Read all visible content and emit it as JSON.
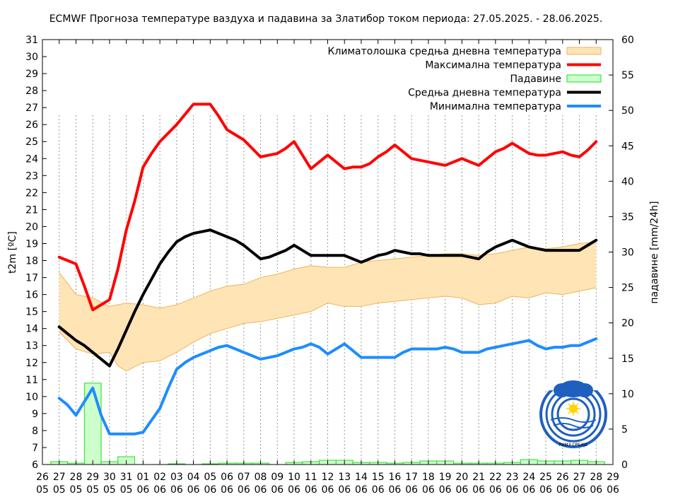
{
  "chart_data": {
    "type": "line",
    "title": "ECMWF Прогноза температуре ваздуха и падавина за Златибор током периода: 27.05.2025. - 28.06.2025.",
    "ylabel": "t2m [ºC]",
    "y2label": "падавине [mm/24h]",
    "ylim": [
      6,
      31
    ],
    "y2lim": [
      0,
      60
    ],
    "yticks": [
      6,
      7,
      8,
      9,
      10,
      11,
      12,
      13,
      14,
      15,
      16,
      17,
      18,
      19,
      20,
      21,
      22,
      23,
      24,
      25,
      26,
      27,
      28,
      29,
      30,
      31
    ],
    "y2ticks": [
      0,
      5,
      10,
      15,
      20,
      25,
      30,
      35,
      40,
      45,
      50,
      55,
      60
    ],
    "xticks_top": [
      "26",
      "27",
      "28",
      "29",
      "30",
      "31",
      "01",
      "02",
      "03",
      "04",
      "05",
      "06",
      "07",
      "08",
      "09",
      "10",
      "11",
      "12",
      "13",
      "14",
      "15",
      "16",
      "17",
      "18",
      "19",
      "20",
      "21",
      "22",
      "23",
      "24",
      "25",
      "26",
      "27",
      "28",
      "29"
    ],
    "xticks_bottom": [
      "05",
      "05",
      "05",
      "05",
      "05",
      "05",
      "06",
      "06",
      "06",
      "06",
      "06",
      "06",
      "06",
      "06",
      "06",
      "06",
      "06",
      "06",
      "06",
      "06",
      "06",
      "06",
      "06",
      "06",
      "06",
      "06",
      "06",
      "06",
      "06",
      "06",
      "06",
      "06",
      "06",
      "06",
      "06"
    ],
    "legend": {
      "placement": "top-right",
      "entries": [
        {
          "label": "Климатолошка средња дневна температура",
          "kind": "band",
          "color": "#ffe4b5"
        },
        {
          "label": "Максимална температура",
          "kind": "line",
          "color": "#ff0000"
        },
        {
          "label": "Падавине",
          "kind": "bar",
          "color": "#ccffcc"
        },
        {
          "label": "Средња дневна температура",
          "kind": "line",
          "color": "#000000"
        },
        {
          "label": "Минимална температура",
          "kind": "line",
          "color": "#1e8cff"
        }
      ]
    },
    "x": [
      1,
      1.5,
      2,
      2.5,
      3,
      3.5,
      4,
      4.5,
      5,
      5.5,
      6,
      6.5,
      7,
      7.5,
      8,
      8.5,
      9,
      9.5,
      10,
      10.5,
      11,
      11.5,
      12,
      12.5,
      13,
      13.5,
      14,
      14.5,
      15,
      15.5,
      16,
      16.5,
      17,
      17.5,
      18,
      18.5,
      19,
      19.5,
      20,
      20.5,
      21,
      21.5,
      22,
      22.5,
      23,
      23.5,
      24,
      24.5,
      25,
      25.5,
      26,
      26.5,
      27,
      27.5,
      28,
      28.5,
      29,
      29.5,
      30,
      30.5,
      31,
      31.5,
      32,
      32.5,
      33
    ],
    "series": [
      {
        "name": "Максимална температура",
        "color": "#ff0000",
        "values": [
          18.2,
          18.0,
          17.8,
          16.5,
          15.1,
          15.4,
          15.7,
          17.5,
          19.8,
          21.5,
          23.5,
          24.3,
          25.0,
          25.5,
          26.0,
          26.6,
          27.2,
          27.2,
          27.2,
          26.5,
          25.7,
          25.4,
          25.1,
          24.6,
          24.1,
          24.2,
          24.3,
          24.6,
          25.0,
          24.2,
          23.4,
          23.8,
          24.2,
          23.8,
          23.4,
          23.5,
          23.5,
          23.7,
          24.1,
          24.4,
          24.8,
          24.4,
          24.0,
          23.9,
          23.8,
          23.7,
          23.6,
          23.8,
          24.0,
          23.8,
          23.6,
          24.0,
          24.4,
          24.6,
          24.9,
          24.6,
          24.3,
          24.2,
          24.2,
          24.3,
          24.4,
          24.2,
          24.1,
          24.5,
          25.0
        ]
      },
      {
        "name": "Средња дневна температура",
        "color": "#000000",
        "values": [
          14.1,
          13.7,
          13.3,
          13.0,
          12.6,
          12.2,
          11.8,
          12.8,
          13.9,
          15.0,
          16.0,
          16.9,
          17.8,
          18.5,
          19.1,
          19.4,
          19.6,
          19.7,
          19.8,
          19.6,
          19.4,
          19.2,
          18.9,
          18.5,
          18.1,
          18.2,
          18.4,
          18.6,
          18.9,
          18.6,
          18.3,
          18.3,
          18.3,
          18.3,
          18.3,
          18.1,
          17.9,
          18.1,
          18.3,
          18.4,
          18.6,
          18.5,
          18.4,
          18.4,
          18.3,
          18.3,
          18.3,
          18.3,
          18.3,
          18.2,
          18.1,
          18.5,
          18.8,
          19.0,
          19.2,
          19.0,
          18.8,
          18.7,
          18.6,
          18.6,
          18.6,
          18.6,
          18.6,
          18.9,
          19.2
        ]
      },
      {
        "name": "Минимална температура",
        "color": "#1e8cff",
        "values": [
          9.9,
          9.5,
          8.9,
          9.7,
          10.5,
          8.9,
          7.8,
          7.8,
          7.8,
          7.8,
          7.9,
          8.6,
          9.3,
          10.5,
          11.6,
          12.0,
          12.3,
          12.5,
          12.7,
          12.9,
          13.0,
          12.8,
          12.6,
          12.4,
          12.2,
          12.3,
          12.4,
          12.6,
          12.8,
          12.9,
          13.1,
          12.9,
          12.5,
          12.8,
          13.1,
          12.7,
          12.3,
          12.3,
          12.3,
          12.3,
          12.3,
          12.6,
          12.8,
          12.8,
          12.8,
          12.8,
          12.9,
          12.8,
          12.6,
          12.6,
          12.6,
          12.8,
          12.9,
          13.0,
          13.1,
          13.2,
          13.3,
          13.0,
          12.8,
          12.9,
          12.9,
          13.0,
          13.0,
          13.2,
          13.4
        ]
      }
    ],
    "climatology_band": {
      "name": "Климатолошка средња дневна температура",
      "color": "#ffe4b5",
      "edge_color": "#ebb55c",
      "x": [
        1,
        2,
        3,
        4,
        4.5,
        5,
        6,
        7,
        8,
        9,
        10,
        11,
        12,
        13,
        14,
        15,
        16,
        17,
        18,
        19,
        20,
        21,
        22,
        23,
        24,
        25,
        26,
        27,
        28,
        29,
        30,
        31,
        32,
        33
      ],
      "upper": [
        17.3,
        16.0,
        15.8,
        15.3,
        15.4,
        15.5,
        15.4,
        15.2,
        15.4,
        15.8,
        16.2,
        16.5,
        16.6,
        17.0,
        17.2,
        17.5,
        17.7,
        17.6,
        17.6,
        17.9,
        18.0,
        18.1,
        18.2,
        18.3,
        18.4,
        18.4,
        18.3,
        18.4,
        18.6,
        18.8,
        18.7,
        18.8,
        19.0,
        19.1
      ],
      "lower": [
        13.8,
        12.8,
        12.5,
        12.6,
        11.8,
        11.5,
        12.0,
        12.1,
        12.6,
        13.2,
        13.7,
        14.0,
        14.3,
        14.4,
        14.6,
        14.8,
        15.0,
        15.5,
        15.3,
        15.3,
        15.5,
        15.6,
        15.7,
        15.8,
        15.9,
        15.8,
        15.4,
        15.5,
        15.9,
        15.8,
        16.1,
        16.0,
        16.2,
        16.4
      ]
    },
    "precipitation": {
      "name": "Падавине",
      "color": "#ccffcc",
      "edge_color": "#22dd22",
      "x": [
        1,
        2,
        3,
        4,
        5,
        6,
        7,
        8,
        9,
        10,
        11,
        12,
        13,
        14,
        15,
        16,
        17,
        18,
        19,
        20,
        21,
        22,
        23,
        24,
        25,
        26,
        27,
        28,
        29,
        30,
        31,
        32,
        33
      ],
      "values": [
        0.4,
        0.2,
        11.5,
        0.4,
        1.1,
        0.0,
        0.0,
        0.1,
        0.0,
        0.1,
        0.2,
        0.2,
        0.2,
        0.0,
        0.3,
        0.4,
        0.6,
        0.6,
        0.3,
        0.3,
        0.2,
        0.3,
        0.5,
        0.5,
        0.2,
        0.2,
        0.2,
        0.3,
        0.7,
        0.5,
        0.5,
        0.6,
        0.4
      ]
    }
  },
  "logo": {
    "icon": "rhmz-logo-icon",
    "caption": "РХМЗ СРБИЈЕ",
    "color": "#1f5fbf"
  }
}
